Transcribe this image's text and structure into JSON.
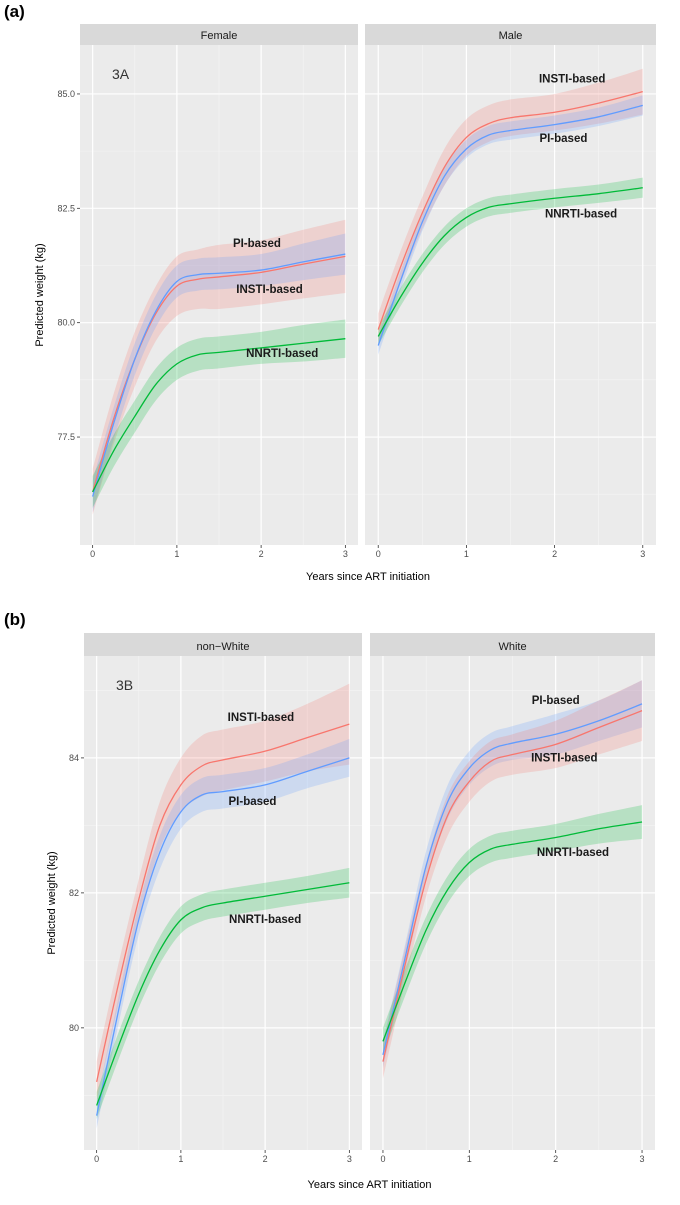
{
  "chart_data": [
    {
      "type": "line",
      "panel_label": "(a)",
      "inner_label": "3A",
      "xlabel": "Years since ART initiation",
      "ylabel": "Predicted  weight (kg)",
      "xlim": [
        -0.15,
        3.15
      ],
      "ylim": [
        75.14,
        86.07
      ],
      "xticks": [
        0,
        1,
        2,
        3
      ],
      "yticks": [
        77.5,
        80.0,
        82.5,
        85.0
      ],
      "ytick_labels": [
        "77.5",
        "80.0",
        "82.5",
        "85.0"
      ],
      "grid": true,
      "legend": "none (direct labels)",
      "colors": {
        "INSTI-based": "#F8766D",
        "PI-based": "#619CFF",
        "NNRTI-based": "#00BA38"
      },
      "x": [
        0,
        0.25,
        0.5,
        0.75,
        1,
        1.25,
        1.5,
        2,
        2.5,
        3
      ],
      "facets": [
        {
          "name": "Female",
          "series": [
            {
              "name": "INSTI-based",
              "values": [
                76.3,
                77.9,
                79.2,
                80.2,
                80.8,
                80.95,
                81.0,
                81.1,
                81.28,
                81.45
              ],
              "ci_halfwidth": [
                0.5,
                0.55,
                0.6,
                0.6,
                0.65,
                0.65,
                0.7,
                0.7,
                0.75,
                0.8
              ]
            },
            {
              "name": "PI-based",
              "values": [
                76.2,
                77.8,
                79.2,
                80.25,
                80.9,
                81.05,
                81.08,
                81.15,
                81.33,
                81.5
              ],
              "ci_halfwidth": [
                0.35,
                0.35,
                0.35,
                0.35,
                0.35,
                0.35,
                0.35,
                0.35,
                0.4,
                0.45
              ]
            },
            {
              "name": "NNRTI-based",
              "values": [
                76.3,
                77.2,
                77.95,
                78.65,
                79.1,
                79.3,
                79.35,
                79.45,
                79.55,
                79.65
              ],
              "ci_halfwidth": [
                0.35,
                0.35,
                0.35,
                0.35,
                0.35,
                0.35,
                0.35,
                0.35,
                0.4,
                0.42
              ]
            }
          ],
          "annotations": [
            {
              "text": "PI-based",
              "x": 1.95,
              "y": 81.65
            },
            {
              "text": "INSTI-based",
              "x": 2.1,
              "y": 80.65
            },
            {
              "text": "NNRTI-based",
              "x": 2.25,
              "y": 79.25
            }
          ]
        },
        {
          "name": "Male",
          "series": [
            {
              "name": "INSTI-based",
              "values": [
                79.85,
                81.2,
                82.4,
                83.4,
                84.05,
                84.35,
                84.48,
                84.6,
                84.8,
                85.05
              ],
              "ci_halfwidth": [
                0.35,
                0.35,
                0.35,
                0.4,
                0.4,
                0.4,
                0.4,
                0.4,
                0.45,
                0.5
              ]
            },
            {
              "name": "PI-based",
              "values": [
                79.5,
                80.9,
                82.2,
                83.2,
                83.8,
                84.1,
                84.2,
                84.33,
                84.5,
                84.75
              ],
              "ci_halfwidth": [
                0.2,
                0.2,
                0.2,
                0.2,
                0.2,
                0.2,
                0.2,
                0.2,
                0.2,
                0.22
              ]
            },
            {
              "name": "NNRTI-based",
              "values": [
                79.7,
                80.55,
                81.3,
                81.9,
                82.3,
                82.52,
                82.6,
                82.72,
                82.82,
                82.95
              ],
              "ci_halfwidth": [
                0.2,
                0.2,
                0.2,
                0.2,
                0.2,
                0.2,
                0.2,
                0.2,
                0.2,
                0.22
              ]
            }
          ],
          "annotations": [
            {
              "text": "INSTI-based",
              "x": 2.2,
              "y": 85.25
            },
            {
              "text": "PI-based",
              "x": 2.1,
              "y": 83.95
            },
            {
              "text": "NNRTI-based",
              "x": 2.3,
              "y": 82.3
            }
          ]
        }
      ]
    },
    {
      "type": "line",
      "panel_label": "(b)",
      "inner_label": "3B",
      "xlabel": "Years since ART initiation",
      "ylabel": "Predicted  weight (kg)",
      "xlim": [
        -0.15,
        3.15
      ],
      "ylim": [
        78.19,
        85.51
      ],
      "xticks": [
        0,
        1,
        2,
        3
      ],
      "yticks": [
        80,
        82,
        84
      ],
      "ytick_labels": [
        "80",
        "82",
        "84"
      ],
      "grid": true,
      "legend": "none (direct labels)",
      "colors": {
        "INSTI-based": "#F8766D",
        "PI-based": "#619CFF",
        "NNRTI-based": "#00BA38"
      },
      "x": [
        0,
        0.25,
        0.5,
        0.75,
        1,
        1.25,
        1.5,
        2,
        2.5,
        3
      ],
      "facets": [
        {
          "name": "non−White",
          "series": [
            {
              "name": "INSTI-based",
              "values": [
                79.2,
                80.6,
                81.9,
                83.0,
                83.6,
                83.88,
                83.97,
                84.1,
                84.3,
                84.5
              ],
              "ci_halfwidth": [
                0.3,
                0.3,
                0.3,
                0.35,
                0.4,
                0.45,
                0.45,
                0.45,
                0.5,
                0.6
              ]
            },
            {
              "name": "PI-based",
              "values": [
                78.7,
                80.2,
                81.6,
                82.6,
                83.2,
                83.45,
                83.5,
                83.6,
                83.8,
                84.0
              ],
              "ci_halfwidth": [
                0.2,
                0.2,
                0.22,
                0.25,
                0.25,
                0.25,
                0.25,
                0.25,
                0.25,
                0.28
              ]
            },
            {
              "name": "NNRTI-based",
              "values": [
                78.85,
                79.7,
                80.5,
                81.15,
                81.6,
                81.78,
                81.85,
                81.95,
                82.05,
                82.15
              ],
              "ci_halfwidth": [
                0.2,
                0.2,
                0.2,
                0.2,
                0.2,
                0.2,
                0.2,
                0.2,
                0.2,
                0.22
              ]
            }
          ],
          "annotations": [
            {
              "text": "INSTI-based",
              "x": 1.95,
              "y": 84.55
            },
            {
              "text": "PI-based",
              "x": 1.85,
              "y": 83.3
            },
            {
              "text": "NNRTI-based",
              "x": 2.0,
              "y": 81.55
            }
          ]
        },
        {
          "name": "White",
          "series": [
            {
              "name": "PI-based",
              "values": [
                79.6,
                81.0,
                82.4,
                83.35,
                83.85,
                84.12,
                84.22,
                84.35,
                84.55,
                84.8
              ],
              "ci_halfwidth": [
                0.2,
                0.2,
                0.22,
                0.25,
                0.25,
                0.25,
                0.25,
                0.3,
                0.3,
                0.35
              ]
            },
            {
              "name": "INSTI-based",
              "values": [
                79.5,
                80.9,
                82.2,
                83.15,
                83.65,
                83.95,
                84.05,
                84.2,
                84.45,
                84.7
              ],
              "ci_halfwidth": [
                0.25,
                0.25,
                0.25,
                0.3,
                0.3,
                0.3,
                0.3,
                0.35,
                0.4,
                0.45
              ]
            },
            {
              "name": "NNRTI-based",
              "values": [
                79.8,
                80.65,
                81.45,
                82.05,
                82.45,
                82.65,
                82.72,
                82.82,
                82.95,
                83.05
              ],
              "ci_halfwidth": [
                0.2,
                0.2,
                0.2,
                0.2,
                0.2,
                0.2,
                0.2,
                0.2,
                0.22,
                0.25
              ]
            }
          ],
          "annotations": [
            {
              "text": "PI-based",
              "x": 2.0,
              "y": 84.8
            },
            {
              "text": "INSTI-based",
              "x": 2.1,
              "y": 83.95
            },
            {
              "text": "NNRTI-based",
              "x": 2.2,
              "y": 82.55
            }
          ]
        }
      ]
    }
  ]
}
